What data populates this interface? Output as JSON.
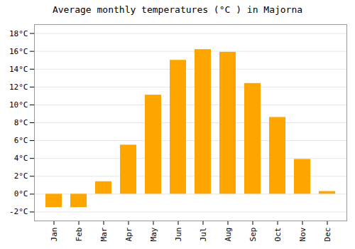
{
  "chart_data": {
    "type": "bar",
    "title": "Average monthly temperatures (°C ) in Majorna",
    "categories": [
      "Jan",
      "Feb",
      "Mar",
      "Apr",
      "May",
      "Jun",
      "Jul",
      "Aug",
      "Sep",
      "Oct",
      "Nov",
      "Dec"
    ],
    "values": [
      -1.5,
      -1.5,
      1.4,
      5.5,
      11.1,
      15.0,
      16.2,
      15.9,
      12.4,
      8.6,
      3.9,
      0.3
    ],
    "color": "#FFA500",
    "ylim": [
      -3,
      19
    ],
    "yticks": [
      {
        "value": -2,
        "label": "-2°C"
      },
      {
        "value": 0,
        "label": "0°C"
      },
      {
        "value": 2,
        "label": "2°C"
      },
      {
        "value": 4,
        "label": "4°C"
      },
      {
        "value": 6,
        "label": "6°C"
      },
      {
        "value": 8,
        "label": "8°C"
      },
      {
        "value": 10,
        "label": "10°C"
      },
      {
        "value": 12,
        "label": "12°C"
      },
      {
        "value": 14,
        "label": "14°C"
      },
      {
        "value": 16,
        "label": "16°C"
      },
      {
        "value": 18,
        "label": "18°C"
      }
    ],
    "grid": true
  }
}
